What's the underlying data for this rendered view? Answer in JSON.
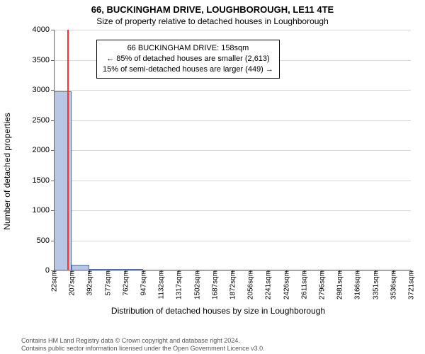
{
  "title": "66, BUCKINGHAM DRIVE, LOUGHBOROUGH, LE11 4TE",
  "subtitle": "Size of property relative to detached houses in Loughborough",
  "ylabel": "Number of detached properties",
  "xlabel": "Distribution of detached houses by size in Loughborough",
  "chart": {
    "type": "bar-histogram",
    "background_color": "#ffffff",
    "grid_color": "#d8d8d8",
    "axis_color": "#666666",
    "bar_fill": "#b9c7e4",
    "bar_border": "#5670a8",
    "marker_color": "#ff3030",
    "ylim": [
      0,
      4000
    ],
    "yticks": [
      0,
      500,
      1000,
      1500,
      2000,
      2500,
      3000,
      3500,
      4000
    ],
    "xtick_labels": [
      "22sqm",
      "207sqm",
      "392sqm",
      "577sqm",
      "762sqm",
      "947sqm",
      "1132sqm",
      "1317sqm",
      "1502sqm",
      "1687sqm",
      "1872sqm",
      "2056sqm",
      "2241sqm",
      "2426sqm",
      "2611sqm",
      "2796sqm",
      "2981sqm",
      "3166sqm",
      "3351sqm",
      "3536sqm",
      "3721sqm"
    ],
    "xtick_values": [
      22,
      207,
      392,
      577,
      762,
      947,
      1132,
      1317,
      1502,
      1687,
      1872,
      2056,
      2241,
      2426,
      2611,
      2796,
      2981,
      3166,
      3351,
      3536,
      3721
    ],
    "x_range": [
      22,
      3721
    ],
    "bars": [
      {
        "x0": 22,
        "x1": 207,
        "value": 2980
      },
      {
        "x0": 207,
        "x1": 392,
        "value": 90
      },
      {
        "x0": 392,
        "x1": 577,
        "value": 4
      },
      {
        "x0": 577,
        "x1": 762,
        "value": 1
      },
      {
        "x0": 762,
        "x1": 947,
        "value": 1
      }
    ],
    "marker_x": 158,
    "tick_fontsize": 11
  },
  "info_box": {
    "line1": "66 BUCKINGHAM DRIVE: 158sqm",
    "line2": "← 85% of detached houses are smaller (2,613)",
    "line3": "15% of semi-detached houses are larger (449) →"
  },
  "footer": {
    "line1": "Contains HM Land Registry data © Crown copyright and database right 2024.",
    "line2": "Contains public sector information licensed under the Open Government Licence v3.0."
  }
}
